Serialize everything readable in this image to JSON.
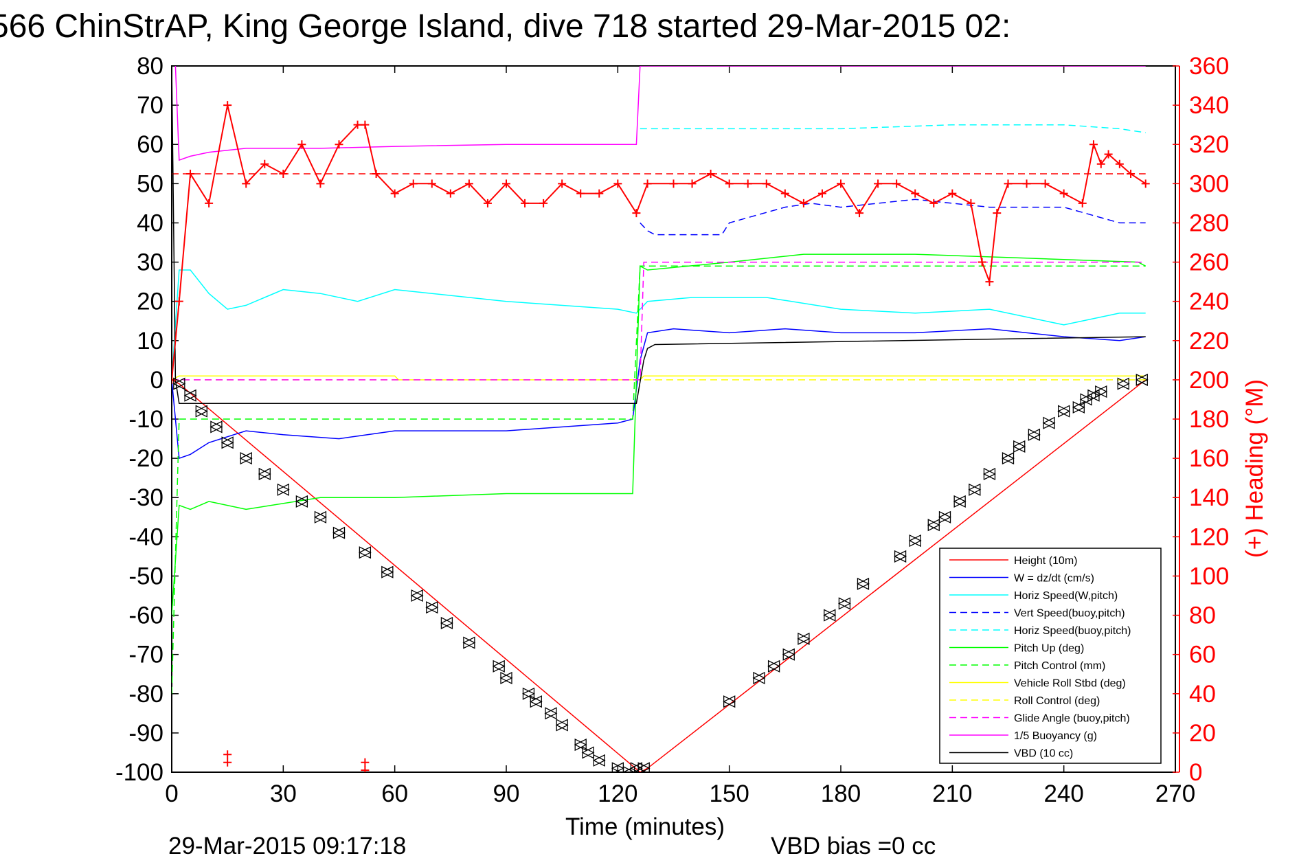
{
  "chart_data": {
    "type": "line",
    "title": "566 ChinStrAP, King George Island, dive 718 started 29-Mar-2015 02:",
    "xlabel": "Time (minutes)",
    "ylabel_right": "(+) Heading (°M)",
    "xlim": [
      0,
      270
    ],
    "ylim_left": [
      -100,
      80
    ],
    "ylim_right": [
      0,
      360
    ],
    "x_ticks": [
      "0",
      "30",
      "60",
      "90",
      "120",
      "150",
      "180",
      "210",
      "240",
      "270"
    ],
    "y_ticks_left": [
      "80",
      "70",
      "60",
      "50",
      "40",
      "30",
      "20",
      "10",
      "0",
      "-10",
      "-20",
      "-30",
      "-40",
      "-50",
      "-60",
      "-70",
      "-80",
      "-90",
      "-100"
    ],
    "y_ticks_right": [
      "360",
      "340",
      "320",
      "300",
      "280",
      "260",
      "240",
      "220",
      "200",
      "180",
      "160",
      "140",
      "120",
      "100",
      "80",
      "60",
      "40",
      "20",
      "0"
    ],
    "footer_date": "29-Mar-2015 09:17:18",
    "footer_vbd": "VBD bias =0 cc",
    "legend": [
      {
        "label": "Height (10m)",
        "color": "#ff0000",
        "dash": false
      },
      {
        "label": "W = dz/dt (cm/s)",
        "color": "#0000ff",
        "dash": false
      },
      {
        "label": "Horiz Speed(W,pitch)",
        "color": "#00ffff",
        "dash": false
      },
      {
        "label": "Vert Speed(buoy,pitch)",
        "color": "#0000ff",
        "dash": true
      },
      {
        "label": "Horiz Speed(buoy,pitch)",
        "color": "#00ffff",
        "dash": true
      },
      {
        "label": "Pitch Up (deg)",
        "color": "#00ff00",
        "dash": false
      },
      {
        "label": "Pitch Control (mm)",
        "color": "#00ff00",
        "dash": true
      },
      {
        "label": "Vehicle Roll Stbd (deg)",
        "color": "#ffff00",
        "dash": false
      },
      {
        "label": "Roll Control (deg)",
        "color": "#ffff00",
        "dash": true
      },
      {
        "label": "Glide Angle (buoy,pitch)",
        "color": "#ff00ff",
        "dash": true
      },
      {
        "label": "1/5 Buoyancy (g)",
        "color": "#ff00ff",
        "dash": false
      },
      {
        "label": "VBD (10 cc)",
        "color": "#000000",
        "dash": false
      }
    ],
    "series": [
      {
        "name": "Height (10m)",
        "color": "#ff0000",
        "x": [
          0,
          1,
          2,
          126,
          128,
          262
        ],
        "y": [
          0,
          -0.5,
          -1,
          -100,
          -99,
          0
        ]
      },
      {
        "name": "W = dz/dt (cm/s)",
        "color": "#0000ff",
        "x": [
          0,
          2,
          5,
          10,
          20,
          30,
          45,
          60,
          90,
          120,
          124,
          126,
          128,
          135,
          150,
          165,
          180,
          200,
          220,
          240,
          255,
          262
        ],
        "y": [
          0,
          -20,
          -19,
          -16,
          -13,
          -14,
          -15,
          -13,
          -13,
          -11,
          -10,
          5,
          12,
          13,
          12,
          13,
          12,
          12,
          13,
          11,
          10,
          11
        ]
      },
      {
        "name": "Horiz Speed(W,pitch)",
        "color": "#00ffff",
        "x": [
          0,
          2,
          5,
          10,
          15,
          20,
          30,
          40,
          50,
          60,
          90,
          120,
          125,
          128,
          140,
          160,
          180,
          200,
          220,
          240,
          255,
          262
        ],
        "y": [
          0,
          28,
          28,
          22,
          18,
          19,
          23,
          22,
          20,
          23,
          20,
          18,
          17,
          20,
          21,
          21,
          18,
          17,
          18,
          14,
          17,
          17
        ]
      },
      {
        "name": "Vert Speed(buoy,pitch)",
        "color": "#0000ff",
        "x": [
          126,
          128,
          130,
          148,
          150,
          165,
          172,
          180,
          200,
          220,
          240,
          255,
          262
        ],
        "y": [
          40,
          38,
          37,
          37,
          40,
          44,
          45,
          44,
          46,
          44,
          44,
          40,
          40
        ]
      },
      {
        "name": "Horiz Speed(buoy,pitch)",
        "color": "#00ffff",
        "x": [
          126,
          128,
          150,
          180,
          210,
          240,
          255,
          262
        ],
        "y": [
          64,
          64,
          64,
          64,
          65,
          65,
          64,
          63
        ]
      },
      {
        "name": "Pitch Up (deg)",
        "color": "#00ff00",
        "x": [
          0,
          2,
          5,
          10,
          20,
          40,
          60,
          90,
          120,
          124,
          126,
          128,
          150,
          170,
          200,
          230,
          260,
          262
        ],
        "y": [
          -60,
          -32,
          -33,
          -31,
          -33,
          -30,
          -30,
          -29,
          -29,
          -29,
          29,
          28,
          30,
          32,
          32,
          31,
          30,
          29
        ]
      },
      {
        "name": "Pitch Control (mm)",
        "color": "#00ff00",
        "x": [
          0,
          2,
          10,
          60,
          124,
          126,
          128,
          262
        ],
        "y": [
          -80,
          -10,
          -10,
          -10,
          -10,
          29,
          29,
          29
        ]
      },
      {
        "name": "Vehicle Roll Stbd (deg)",
        "color": "#ffff00",
        "x": [
          0,
          2,
          10,
          60,
          61,
          125,
          126,
          127,
          262
        ],
        "y": [
          0,
          1,
          1,
          1,
          0,
          0,
          0,
          1,
          1
        ]
      },
      {
        "name": "Roll Control (deg)",
        "color": "#ffff00",
        "x": [
          0,
          2,
          60,
          125,
          126,
          262
        ],
        "y": [
          0,
          0,
          0,
          0,
          0,
          0
        ]
      },
      {
        "name": "Glide Angle (buoy,pitch)",
        "color": "#ff00ff",
        "x": [
          0,
          2,
          126,
          127,
          262
        ],
        "y": [
          0,
          0,
          0,
          30,
          30
        ]
      },
      {
        "name": "1/5 Buoyancy (g)",
        "color": "#ff00ff",
        "x": [
          1,
          2,
          5,
          10,
          20,
          40,
          60,
          90,
          124,
          125,
          126,
          128,
          150,
          200,
          262
        ],
        "y": [
          80,
          56,
          57,
          58,
          59,
          59,
          59.5,
          60,
          60,
          60,
          80,
          80,
          80,
          80,
          80
        ]
      },
      {
        "name": "VBD (10 cc)",
        "color": "#000000",
        "x": [
          0,
          1,
          2,
          124,
          125,
          127,
          128,
          130,
          262
        ],
        "y": [
          80,
          0,
          -6,
          -6,
          -6,
          5,
          8,
          9,
          11
        ]
      },
      {
        "name": "Heading",
        "axis": "right",
        "color": "#ff0000",
        "x": [
          0,
          2,
          5,
          10,
          15,
          20,
          25,
          30,
          35,
          40,
          45,
          50,
          52,
          55,
          60,
          65,
          70,
          75,
          80,
          85,
          90,
          95,
          100,
          105,
          110,
          115,
          120,
          125,
          128,
          135,
          140,
          145,
          150,
          155,
          160,
          165,
          170,
          175,
          180,
          185,
          190,
          195,
          200,
          205,
          210,
          215,
          218,
          220,
          222,
          225,
          230,
          235,
          240,
          245,
          248,
          250,
          252,
          255,
          258,
          262
        ],
        "y": [
          200,
          240,
          305,
          290,
          340,
          300,
          310,
          305,
          320,
          300,
          320,
          330,
          330,
          305,
          295,
          300,
          300,
          295,
          300,
          290,
          300,
          290,
          290,
          300,
          295,
          295,
          300,
          285,
          300,
          300,
          300,
          305,
          300,
          300,
          300,
          295,
          290,
          295,
          300,
          285,
          300,
          300,
          295,
          290,
          295,
          290,
          260,
          250,
          285,
          300,
          300,
          300,
          295,
          290,
          320,
          310,
          315,
          310,
          305,
          300
        ]
      }
    ],
    "heading_outliers": {
      "x": [
        15,
        15,
        52,
        52
      ],
      "y": [
        5,
        9,
        5,
        1
      ]
    },
    "heading_target": 305,
    "markers": {
      "x": [
        2,
        5,
        8,
        12,
        15,
        20,
        25,
        30,
        35,
        40,
        45,
        52,
        58,
        66,
        70,
        74,
        80,
        88,
        90,
        96,
        98,
        102,
        105,
        110,
        112,
        115,
        120,
        123,
        125,
        127,
        150,
        158,
        162,
        166,
        170,
        177,
        181,
        186,
        196,
        200,
        205,
        208,
        212,
        216,
        220,
        225,
        228,
        232,
        236,
        240,
        244,
        246,
        248,
        250,
        256,
        261
      ],
      "y": [
        -1,
        -4,
        -8,
        -12,
        -16,
        -20,
        -24,
        -28,
        -31,
        -35,
        -39,
        -44,
        -49,
        -55,
        -58,
        -62,
        -67,
        -73,
        -76,
        -80,
        -82,
        -85,
        -88,
        -93,
        -95,
        -97,
        -99,
        -100,
        -99,
        -99,
        -82,
        -76,
        -73,
        -70,
        -66,
        -60,
        -57,
        -52,
        -45,
        -41,
        -37,
        -35,
        -31,
        -28,
        -24,
        -20,
        -17,
        -14,
        -11,
        -8,
        -7,
        -5,
        -4,
        -3,
        -1,
        0
      ]
    }
  }
}
